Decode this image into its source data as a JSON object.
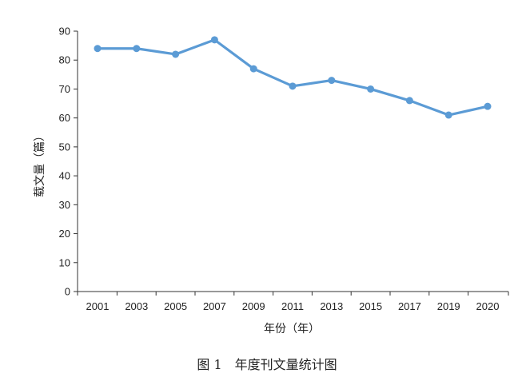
{
  "chart_data": {
    "type": "line",
    "title": "",
    "caption": "图 1　年度刊文量统计图",
    "xlabel": "年份（年）",
    "ylabel": "载文量（篇）",
    "categories": [
      "2001",
      "2003",
      "2005",
      "2007",
      "2009",
      "2011",
      "2013",
      "2015",
      "2017",
      "2019",
      "2020"
    ],
    "series": [
      {
        "values": [
          84,
          84,
          82,
          87,
          77,
          71,
          73,
          70,
          66,
          61,
          64
        ]
      }
    ],
    "ylim": [
      0,
      90
    ],
    "yticks": [
      "0",
      "10",
      "20",
      "30",
      "40",
      "50",
      "60",
      "70",
      "80",
      "90"
    ],
    "grid": false,
    "legend": "none",
    "line_color": "#5b9bd5",
    "axis_color": "#333333"
  }
}
